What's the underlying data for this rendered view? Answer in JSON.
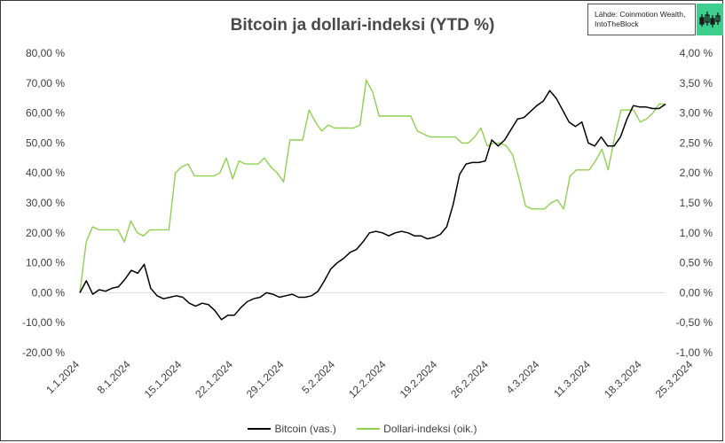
{
  "chart_data": {
    "type": "line",
    "title": "Bitcoin ja dollari-indeksi (YTD %)",
    "source_line1": "Lähde: Coinmotion Wealth,",
    "source_line2": "IntoTheBlock",
    "left_axis": {
      "ylim": [
        -20,
        80
      ],
      "ticks": [
        "80,00 %",
        "70,00 %",
        "60,00 %",
        "50,00 %",
        "40,00 %",
        "30,00 %",
        "20,00 %",
        "10,00 %",
        "0,00 %",
        "-10,00 %",
        "-20,00 %"
      ]
    },
    "right_axis": {
      "ylim": [
        -1,
        4
      ],
      "ticks": [
        "4,00 %",
        "3,50 %",
        "3,00 %",
        "2,50 %",
        "2,00 %",
        "1,50 %",
        "1,00 %",
        "0,50 %",
        "0,00 %",
        "-0,50 %",
        "-1,00 %"
      ]
    },
    "x_ticks": [
      "1.1.2024",
      "8.1.2024",
      "15.1.2024",
      "22.1.2024",
      "29.1.2024",
      "5.2.2024",
      "12.2.2024",
      "19.2.2024",
      "26.2.2024",
      "4.3.2024",
      "11.3.2024",
      "18.3.2024",
      "25.3.2024"
    ],
    "grid": false,
    "legend_position": "bottom",
    "series": [
      {
        "name": "Bitcoin (vas.)",
        "axis": "left",
        "color": "#000000",
        "values": [
          0,
          4,
          -0.5,
          1,
          0.5,
          1.5,
          2,
          4.5,
          7.5,
          6.5,
          9.5,
          1.5,
          -1,
          -2,
          -1.5,
          -1,
          -1.5,
          -3.5,
          -4.5,
          -3.5,
          -4,
          -6,
          -9,
          -7.5,
          -7.5,
          -5,
          -3,
          -2,
          -1.5,
          0,
          -0.5,
          -1.5,
          -1,
          -0.5,
          -1.5,
          -1.5,
          -1,
          0.5,
          4,
          8,
          10,
          11.5,
          13.5,
          14.5,
          17,
          20,
          20.5,
          20,
          19,
          20,
          20.5,
          20,
          19,
          19,
          18,
          18.5,
          19.5,
          22,
          29.5,
          39.5,
          43,
          43.5,
          43.5,
          44,
          51,
          49,
          51,
          54.5,
          58,
          58.5,
          60.5,
          62.5,
          64,
          67.5,
          65,
          61,
          57,
          55.5,
          57,
          50,
          49,
          52,
          49,
          49,
          52,
          58,
          62.5,
          62,
          62,
          61.5,
          61.5,
          63
        ]
      },
      {
        "name": "Dollari-indeksi (oik.)",
        "axis": "right",
        "color": "#8fd14f",
        "values": [
          0,
          0.85,
          1.1,
          1.05,
          1.05,
          1.05,
          1.05,
          0.85,
          1.2,
          1.0,
          0.95,
          1.05,
          1.05,
          1.05,
          1.05,
          2.0,
          2.1,
          2.15,
          1.95,
          1.95,
          1.95,
          1.95,
          2.0,
          2.25,
          1.9,
          2.2,
          2.15,
          2.15,
          2.15,
          2.25,
          2.1,
          2.0,
          1.85,
          2.55,
          2.55,
          2.55,
          3.05,
          2.85,
          2.7,
          2.8,
          2.75,
          2.75,
          2.75,
          2.75,
          2.8,
          3.55,
          3.35,
          2.95,
          2.95,
          2.95,
          2.95,
          2.95,
          2.95,
          2.7,
          2.65,
          2.6,
          2.6,
          2.6,
          2.6,
          2.6,
          2.5,
          2.5,
          2.6,
          2.75,
          2.45,
          2.5,
          2.5,
          2.45,
          2.3,
          1.9,
          1.45,
          1.4,
          1.4,
          1.4,
          1.5,
          1.55,
          1.4,
          1.95,
          2.05,
          2.05,
          2.05,
          2.2,
          2.4,
          2.05,
          2.6,
          3.05,
          3.05,
          3.05,
          2.85,
          2.9,
          3.0,
          3.15,
          3.15
        ]
      }
    ]
  }
}
